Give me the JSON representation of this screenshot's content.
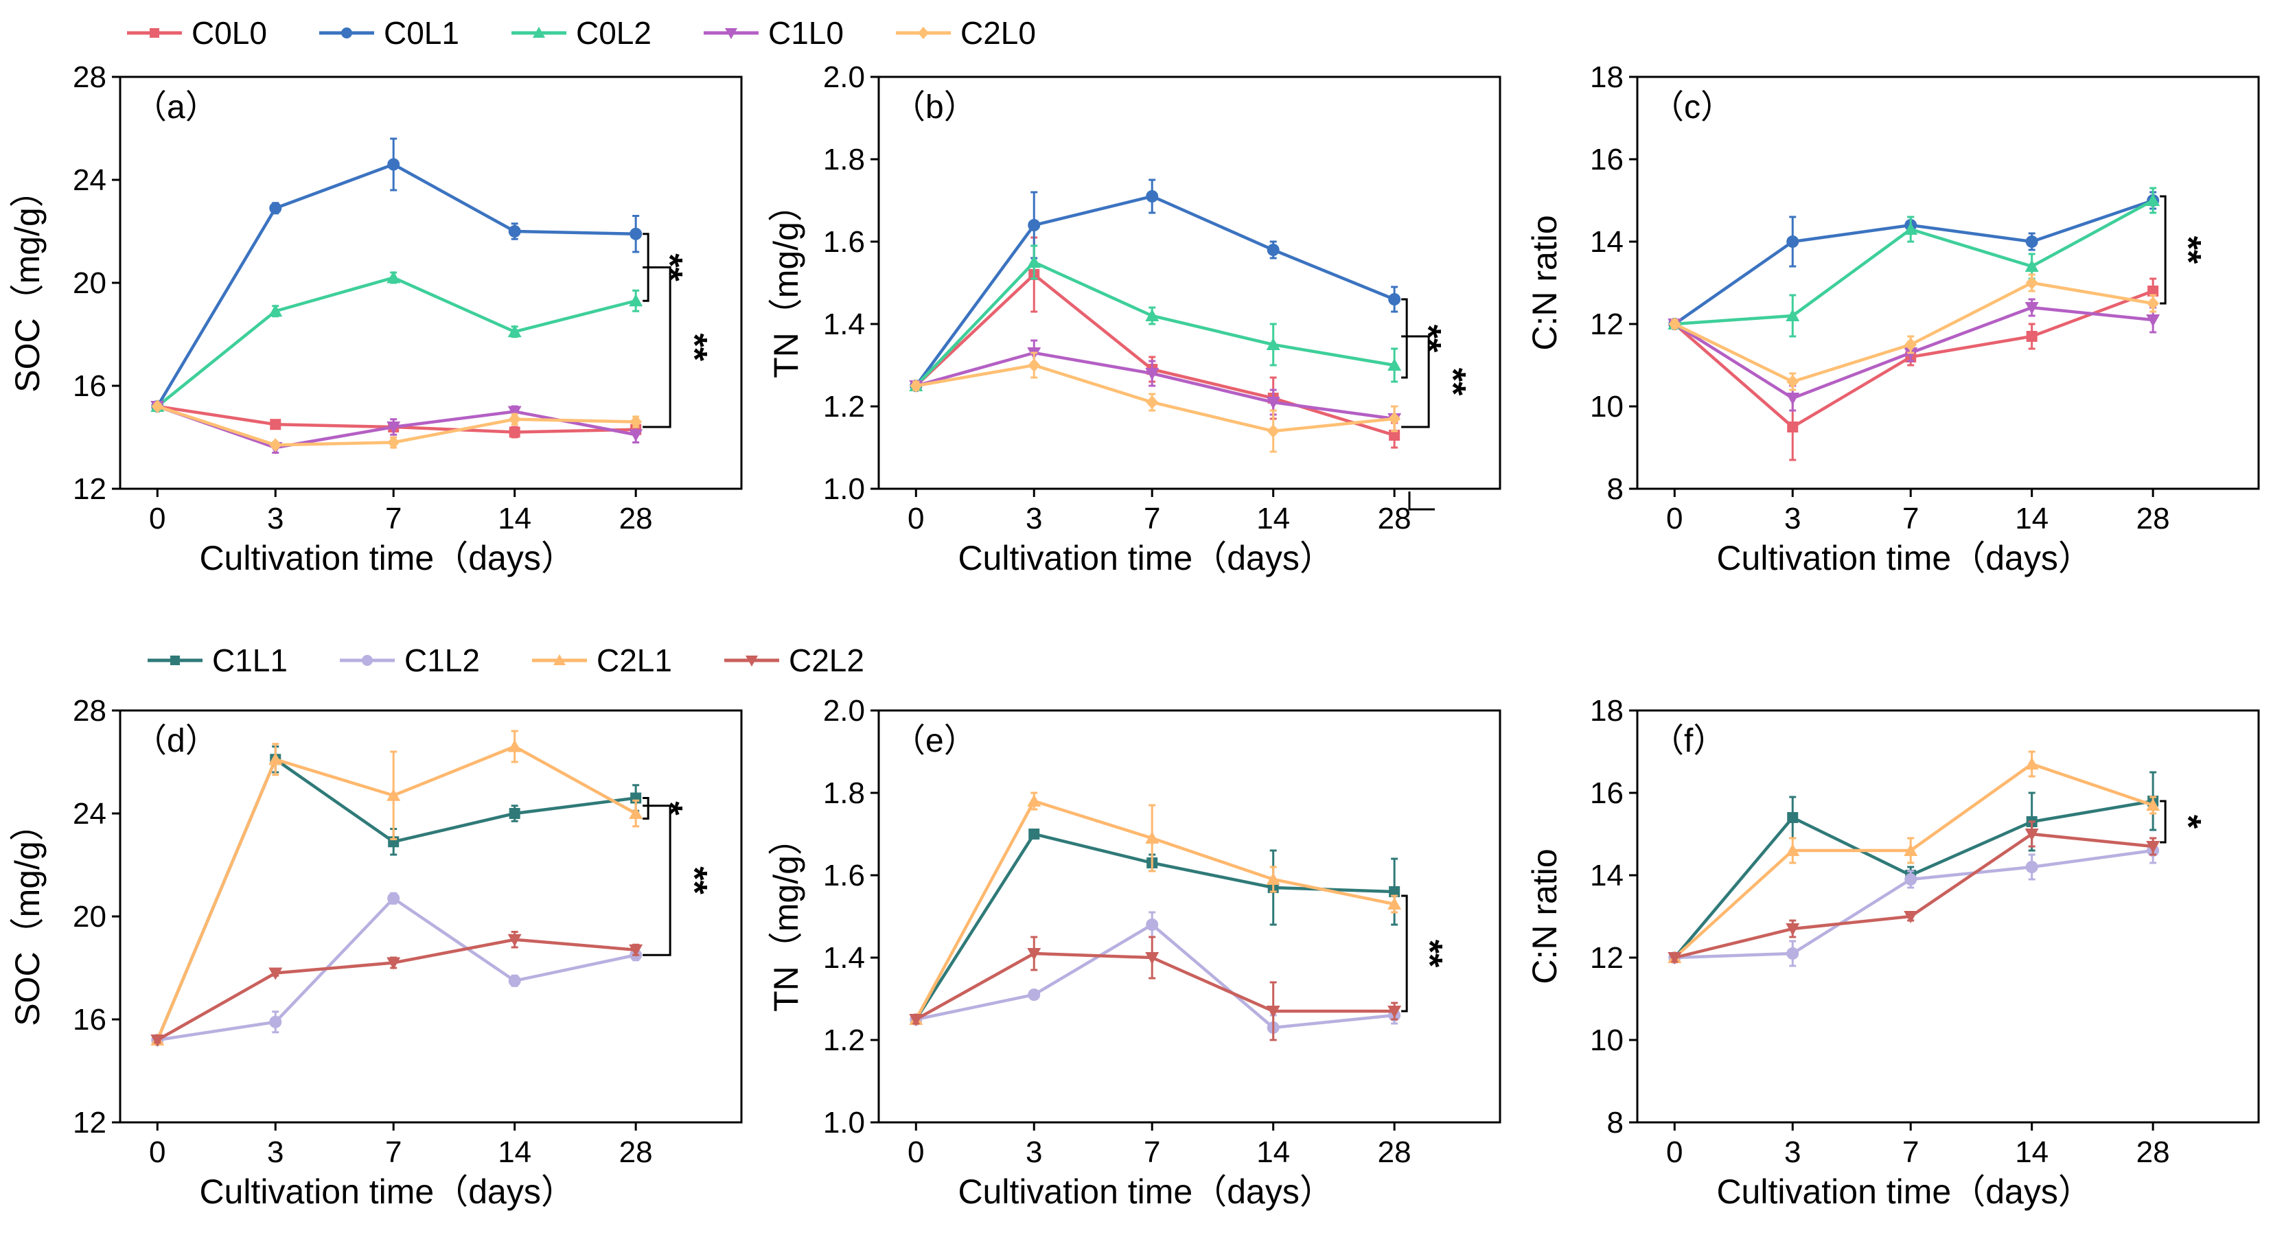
{
  "legends": [
    {
      "entries": [
        {
          "name": "C0L0",
          "color": "#e8616e",
          "marker": "square"
        },
        {
          "name": "C0L1",
          "color": "#3b73c0",
          "marker": "circle"
        },
        {
          "name": "C0L2",
          "color": "#3ecf9a",
          "marker": "triangle-up"
        },
        {
          "name": "C1L0",
          "color": "#b45fc4",
          "marker": "triangle-down"
        },
        {
          "name": "C2L0",
          "color": "#ffbf73",
          "marker": "diamond"
        }
      ]
    },
    {
      "entries": [
        {
          "name": "C1L1",
          "color": "#2f7a78",
          "marker": "square"
        },
        {
          "name": "C1L2",
          "color": "#b7b0e0",
          "marker": "circle"
        },
        {
          "name": "C2L1",
          "color": "#ffb86e",
          "marker": "triangle-up"
        },
        {
          "name": "C2L2",
          "color": "#c9605c",
          "marker": "triangle-down"
        }
      ]
    }
  ],
  "chart_data": [
    {
      "type": "line",
      "label": "（a）",
      "ylabel": "SOC（mg/g）",
      "xlabel": "Cultivation time（days）",
      "categories": [
        "0",
        "3",
        "7",
        "14",
        "28"
      ],
      "ylim": [
        12,
        28
      ],
      "yticks": [
        12,
        16,
        20,
        24,
        28
      ],
      "series": [
        {
          "name": "C0L0",
          "values": [
            15.2,
            14.5,
            14.4,
            14.2,
            14.3
          ],
          "errors": [
            0.1,
            0.1,
            0.1,
            0.2,
            0.2
          ]
        },
        {
          "name": "C0L1",
          "values": [
            15.2,
            22.9,
            24.6,
            22.0,
            21.9
          ],
          "errors": [
            0.1,
            0.2,
            1.0,
            0.3,
            0.7
          ]
        },
        {
          "name": "C0L2",
          "values": [
            15.2,
            18.9,
            20.2,
            18.1,
            19.3
          ],
          "errors": [
            0.1,
            0.2,
            0.2,
            0.2,
            0.4
          ]
        },
        {
          "name": "C1L0",
          "values": [
            15.2,
            13.6,
            14.4,
            15.0,
            14.1
          ],
          "errors": [
            0.1,
            0.2,
            0.3,
            0.2,
            0.3
          ]
        },
        {
          "name": "C2L0",
          "values": [
            15.2,
            13.7,
            13.8,
            14.7,
            14.6
          ],
          "errors": [
            0.1,
            0.1,
            0.2,
            0.2,
            0.2
          ]
        }
      ],
      "annotations": [
        "**",
        "**"
      ]
    },
    {
      "type": "line",
      "label": "（b）",
      "ylabel": "TN（mg/g）",
      "xlabel": "Cultivation time（days）",
      "categories": [
        "0",
        "3",
        "7",
        "14",
        "28"
      ],
      "ylim": [
        1.0,
        2.0
      ],
      "yticks": [
        "1.0",
        "1.2",
        "1.4",
        "1.6",
        "1.8",
        "2.0"
      ],
      "series": [
        {
          "name": "C0L0",
          "values": [
            1.25,
            1.52,
            1.29,
            1.22,
            1.13
          ],
          "errors": [
            0.01,
            0.09,
            0.03,
            0.05,
            0.03
          ]
        },
        {
          "name": "C0L1",
          "values": [
            1.25,
            1.64,
            1.71,
            1.58,
            1.46
          ],
          "errors": [
            0.01,
            0.08,
            0.04,
            0.02,
            0.03
          ]
        },
        {
          "name": "C0L2",
          "values": [
            1.25,
            1.55,
            1.42,
            1.35,
            1.3
          ],
          "errors": [
            0.01,
            0.04,
            0.02,
            0.05,
            0.04
          ]
        },
        {
          "name": "C1L0",
          "values": [
            1.25,
            1.33,
            1.28,
            1.21,
            1.17
          ],
          "errors": [
            0.01,
            0.03,
            0.03,
            0.03,
            0.03
          ]
        },
        {
          "name": "C2L0",
          "values": [
            1.25,
            1.3,
            1.21,
            1.14,
            1.17
          ],
          "errors": [
            0.01,
            0.03,
            0.02,
            0.05,
            0.03
          ]
        }
      ],
      "annotations": [
        "**",
        "**"
      ]
    },
    {
      "type": "line",
      "label": "（c）",
      "ylabel": "C:N ratio",
      "xlabel": "Cultivation time（days）",
      "categories": [
        "0",
        "3",
        "7",
        "14",
        "28"
      ],
      "ylim": [
        8,
        18
      ],
      "yticks": [
        8,
        10,
        12,
        14,
        16,
        18
      ],
      "series": [
        {
          "name": "C0L0",
          "values": [
            12.0,
            9.5,
            11.2,
            11.7,
            12.8
          ],
          "errors": [
            0.1,
            0.8,
            0.2,
            0.3,
            0.3
          ]
        },
        {
          "name": "C0L1",
          "values": [
            12.0,
            14.0,
            14.4,
            14.0,
            15.0
          ],
          "errors": [
            0.1,
            0.6,
            0.2,
            0.2,
            0.2
          ]
        },
        {
          "name": "C0L2",
          "values": [
            12.0,
            12.2,
            14.3,
            13.4,
            15.0
          ],
          "errors": [
            0.1,
            0.5,
            0.3,
            0.3,
            0.3
          ]
        },
        {
          "name": "C1L0",
          "values": [
            12.0,
            10.2,
            11.3,
            12.4,
            12.1
          ],
          "errors": [
            0.1,
            0.3,
            0.2,
            0.2,
            0.3
          ]
        },
        {
          "name": "C2L0",
          "values": [
            12.0,
            10.6,
            11.5,
            13.0,
            12.5
          ],
          "errors": [
            0.1,
            0.2,
            0.2,
            0.2,
            0.2
          ]
        }
      ],
      "annotations": [
        "**"
      ]
    },
    {
      "type": "line",
      "label": "（d）",
      "ylabel": "SOC（mg/g）",
      "xlabel": "Cultivation time（days）",
      "categories": [
        "0",
        "3",
        "7",
        "14",
        "28"
      ],
      "ylim": [
        12,
        28
      ],
      "yticks": [
        12,
        16,
        20,
        24,
        28
      ],
      "series": [
        {
          "name": "C1L1",
          "values": [
            15.2,
            26.1,
            22.9,
            24.0,
            24.6
          ],
          "errors": [
            0.1,
            0.5,
            0.5,
            0.3,
            0.5
          ]
        },
        {
          "name": "C1L2",
          "values": [
            15.2,
            15.9,
            20.7,
            17.5,
            18.5
          ],
          "errors": [
            0.1,
            0.4,
            0.2,
            0.2,
            0.2
          ]
        },
        {
          "name": "C2L1",
          "values": [
            15.2,
            26.1,
            24.7,
            26.6,
            24.0
          ],
          "errors": [
            0.1,
            0.6,
            1.7,
            0.6,
            0.5
          ]
        },
        {
          "name": "C2L2",
          "values": [
            15.2,
            17.8,
            18.2,
            19.1,
            18.7
          ],
          "errors": [
            0.1,
            0.1,
            0.2,
            0.3,
            0.2
          ]
        }
      ],
      "annotations": [
        "*",
        "**"
      ]
    },
    {
      "type": "line",
      "label": "（e）",
      "ylabel": "TN（mg/g）",
      "xlabel": "Cultivation time（days）",
      "categories": [
        "0",
        "3",
        "7",
        "14",
        "28"
      ],
      "ylim": [
        1.0,
        2.0
      ],
      "yticks": [
        "1.0",
        "1.2",
        "1.4",
        "1.6",
        "1.8",
        "2.0"
      ],
      "series": [
        {
          "name": "C1L1",
          "values": [
            1.25,
            1.7,
            1.63,
            1.57,
            1.56
          ],
          "errors": [
            0.01,
            0.01,
            0.02,
            0.09,
            0.08
          ]
        },
        {
          "name": "C1L2",
          "values": [
            1.25,
            1.31,
            1.48,
            1.23,
            1.26
          ],
          "errors": [
            0.01,
            0.01,
            0.03,
            0.03,
            0.02
          ]
        },
        {
          "name": "C2L1",
          "values": [
            1.25,
            1.78,
            1.69,
            1.59,
            1.53
          ],
          "errors": [
            0.01,
            0.02,
            0.08,
            0.03,
            0.02
          ]
        },
        {
          "name": "C2L2",
          "values": [
            1.25,
            1.41,
            1.4,
            1.27,
            1.27
          ],
          "errors": [
            0.01,
            0.04,
            0.05,
            0.07,
            0.02
          ]
        }
      ],
      "annotations": [
        "**"
      ]
    },
    {
      "type": "line",
      "label": "（f）",
      "ylabel": "C:N ratio",
      "xlabel": "Cultivation time（days）",
      "categories": [
        "0",
        "3",
        "7",
        "14",
        "28"
      ],
      "ylim": [
        8,
        18
      ],
      "yticks": [
        8,
        10,
        12,
        14,
        16,
        18
      ],
      "series": [
        {
          "name": "C1L1",
          "values": [
            12.0,
            15.4,
            14.0,
            15.3,
            15.8
          ],
          "errors": [
            0.1,
            0.5,
            0.2,
            0.7,
            0.7
          ]
        },
        {
          "name": "C1L2",
          "values": [
            12.0,
            12.1,
            13.9,
            14.2,
            14.6
          ],
          "errors": [
            0.1,
            0.3,
            0.2,
            0.3,
            0.3
          ]
        },
        {
          "name": "C2L1",
          "values": [
            12.0,
            14.6,
            14.6,
            16.7,
            15.7
          ],
          "errors": [
            0.1,
            0.3,
            0.3,
            0.3,
            0.2
          ]
        },
        {
          "name": "C2L2",
          "values": [
            12.0,
            12.7,
            13.0,
            15.0,
            14.7
          ],
          "errors": [
            0.1,
            0.2,
            0.1,
            0.3,
            0.2
          ]
        }
      ],
      "annotations": [
        "*"
      ]
    }
  ]
}
